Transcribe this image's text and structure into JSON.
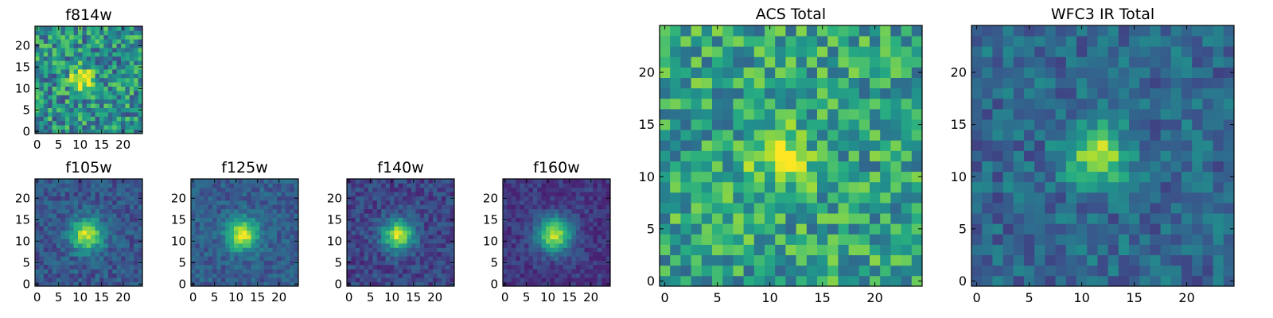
{
  "chart_data": [
    {
      "id": "f814w",
      "type": "heatmap",
      "title": "f814w",
      "image_size": 25,
      "xlim": [
        0,
        24
      ],
      "ylim": [
        0,
        24
      ],
      "xticks": [
        "0",
        "5",
        "10",
        "15",
        "20"
      ],
      "yticks": [
        "0",
        "5",
        "10",
        "15",
        "20"
      ],
      "peak": [
        10.5,
        12
      ],
      "spread": 2.0,
      "amplitude": 0.5,
      "noise": 0.55,
      "base": 0.5,
      "seed": 11
    },
    {
      "id": "f105w",
      "type": "heatmap",
      "title": "f105w",
      "image_size": 25,
      "xlim": [
        0,
        24
      ],
      "ylim": [
        0,
        24
      ],
      "xticks": [
        "0",
        "5",
        "10",
        "15",
        "20"
      ],
      "yticks": [
        "0",
        "5",
        "10",
        "15",
        "20"
      ],
      "peak": [
        11.5,
        11.5
      ],
      "spread": 2.6,
      "amplitude": 0.65,
      "noise": 0.22,
      "base": 0.28,
      "seed": 23
    },
    {
      "id": "f125w",
      "type": "heatmap",
      "title": "f125w",
      "image_size": 25,
      "xlim": [
        0,
        24
      ],
      "ylim": [
        0,
        24
      ],
      "xticks": [
        "0",
        "5",
        "10",
        "15",
        "20"
      ],
      "yticks": [
        "0",
        "5",
        "10",
        "15",
        "20"
      ],
      "peak": [
        11.5,
        11.5
      ],
      "spread": 2.5,
      "amplitude": 0.68,
      "noise": 0.2,
      "base": 0.3,
      "seed": 37
    },
    {
      "id": "f140w",
      "type": "heatmap",
      "title": "f140w",
      "image_size": 25,
      "xlim": [
        0,
        24
      ],
      "ylim": [
        0,
        24
      ],
      "xticks": [
        "0",
        "5",
        "10",
        "15",
        "20"
      ],
      "yticks": [
        "0",
        "5",
        "10",
        "15",
        "20"
      ],
      "peak": [
        11.5,
        11.5
      ],
      "spread": 2.5,
      "amplitude": 0.7,
      "noise": 0.2,
      "base": 0.22,
      "seed": 41
    },
    {
      "id": "f160w",
      "type": "heatmap",
      "title": "f160w",
      "image_size": 25,
      "xlim": [
        0,
        24
      ],
      "ylim": [
        0,
        24
      ],
      "xticks": [
        "0",
        "5",
        "10",
        "15",
        "20"
      ],
      "yticks": [
        "0",
        "5",
        "10",
        "15",
        "20"
      ],
      "peak": [
        11.5,
        11.5
      ],
      "spread": 2.8,
      "amplitude": 0.72,
      "noise": 0.15,
      "base": 0.18,
      "seed": 53
    },
    {
      "id": "acs_total",
      "type": "heatmap",
      "title": "ACS Total",
      "image_size": 25,
      "xlim": [
        0,
        24
      ],
      "ylim": [
        0,
        24
      ],
      "xticks": [
        "0",
        "5",
        "10",
        "15",
        "20"
      ],
      "yticks": [
        "0",
        "5",
        "10",
        "15",
        "20"
      ],
      "peak": [
        11,
        12
      ],
      "spread": 1.8,
      "amplitude": 0.45,
      "noise": 0.5,
      "base": 0.58,
      "seed": 67
    },
    {
      "id": "wfc3_ir_total",
      "type": "heatmap",
      "title": "WFC3 IR Total",
      "image_size": 25,
      "xlim": [
        0,
        24
      ],
      "ylim": [
        0,
        24
      ],
      "xticks": [
        "0",
        "5",
        "10",
        "15",
        "20"
      ],
      "yticks": [
        "0",
        "5",
        "10",
        "15",
        "20"
      ],
      "peak": [
        11.5,
        12
      ],
      "spread": 2.0,
      "amplitude": 0.55,
      "noise": 0.28,
      "base": 0.34,
      "seed": 79
    }
  ],
  "colormap": "viridis"
}
